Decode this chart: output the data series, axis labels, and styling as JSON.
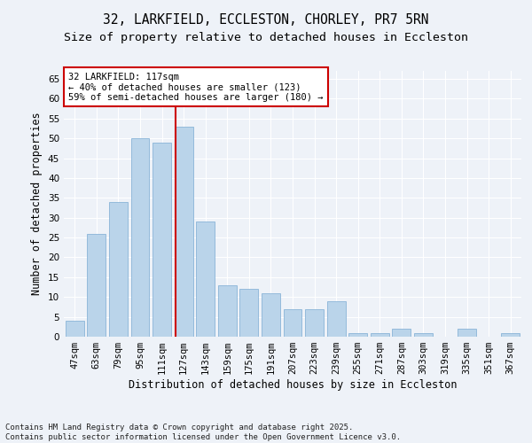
{
  "title1": "32, LARKFIELD, ECCLESTON, CHORLEY, PR7 5RN",
  "title2": "Size of property relative to detached houses in Eccleston",
  "xlabel": "Distribution of detached houses by size in Eccleston",
  "ylabel": "Number of detached properties",
  "categories": [
    "47sqm",
    "63sqm",
    "79sqm",
    "95sqm",
    "111sqm",
    "127sqm",
    "143sqm",
    "159sqm",
    "175sqm",
    "191sqm",
    "207sqm",
    "223sqm",
    "239sqm",
    "255sqm",
    "271sqm",
    "287sqm",
    "303sqm",
    "319sqm",
    "335sqm",
    "351sqm",
    "367sqm"
  ],
  "values": [
    4,
    26,
    34,
    50,
    49,
    53,
    29,
    13,
    12,
    11,
    7,
    7,
    9,
    1,
    1,
    2,
    1,
    0,
    2,
    0,
    1
  ],
  "bar_color": "#bad4ea",
  "bar_edge_color": "#8ab4d8",
  "background_color": "#eef2f8",
  "grid_color": "#ffffff",
  "red_line_x": 4.62,
  "annotation_title": "32 LARKFIELD: 117sqm",
  "annotation_line1": "← 40% of detached houses are smaller (123)",
  "annotation_line2": "59% of semi-detached houses are larger (180) →",
  "annotation_box_color": "#ffffff",
  "annotation_box_edge": "#cc0000",
  "ylim": [
    0,
    67
  ],
  "yticks": [
    0,
    5,
    10,
    15,
    20,
    25,
    30,
    35,
    40,
    45,
    50,
    55,
    60,
    65
  ],
  "footnote": "Contains HM Land Registry data © Crown copyright and database right 2025.\nContains public sector information licensed under the Open Government Licence v3.0.",
  "title_fontsize": 10.5,
  "subtitle_fontsize": 9.5,
  "axis_label_fontsize": 8.5,
  "tick_fontsize": 7.5,
  "annotation_fontsize": 7.5,
  "footnote_fontsize": 6.5
}
